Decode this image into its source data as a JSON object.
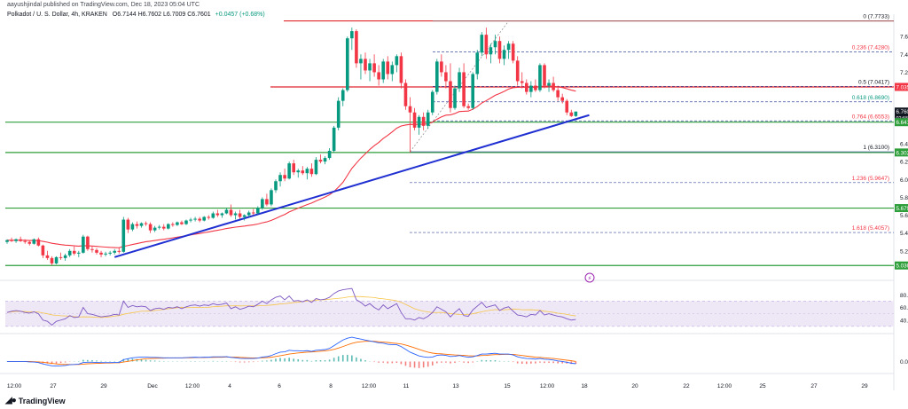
{
  "header": {
    "publish_line": "aayushjindal published on TradingView.com, Dec 18, 2023 05:04 UTC",
    "symbol": "Polkadot / U. S. Dollar, 4h, KRAKEN",
    "ohlc": "O6.7144 H6.7602 L6.7009 C6.7601",
    "change": "+0.0457 (+0.68%)"
  },
  "brand": {
    "label": "TradingView",
    "icon": "tradingview-logo-icon"
  },
  "colors": {
    "up": "#089981",
    "down": "#f23645",
    "ema": "#f23645",
    "trend": "#1f2fd1",
    "resistance": "#e0262e",
    "support": "#2e9e3a",
    "fib": "#3d4f9f",
    "rsi": "#7e57c2",
    "rsi_band": "#ede7f6",
    "macd": "#2962ff",
    "signal": "#ff6d00"
  },
  "chart_data": {
    "type": "candlestick",
    "timeframe": "4h",
    "x_ticks": [
      "12:00",
      "27",
      "29",
      "Dec",
      "12:00",
      "4",
      "6",
      "8",
      "12:00",
      "11",
      "13",
      "15",
      "12:00",
      "18",
      "20",
      "22",
      "12:00",
      "25",
      "27",
      "29"
    ],
    "price_axis": {
      "ticks": [
        "7.6000",
        "7.4000",
        "7.2000",
        "6.4000",
        "6.2000",
        "6.0000",
        "5.8000",
        "5.6000",
        "5.4000",
        "5.2000"
      ],
      "range": [
        4.9,
        7.85
      ]
    },
    "price_labels": [
      {
        "text": "7.0358",
        "value": 7.0358,
        "color": "#f23645"
      },
      {
        "text": "6.7601",
        "value": 6.7601,
        "color": "#131722",
        "sub": "02:55:09"
      },
      {
        "text": "6.6411",
        "value": 6.6411,
        "color": "#2e9e3a"
      },
      {
        "text": "6.3020",
        "value": 6.302,
        "color": "#2e9e3a"
      },
      {
        "text": "5.6793",
        "value": 5.6793,
        "color": "#2e9e3a"
      },
      {
        "text": "5.0369",
        "value": 5.0369,
        "color": "#2e9e3a"
      }
    ],
    "horizontal_lines": [
      {
        "value": 7.775,
        "kind": "resistance"
      },
      {
        "value": 7.0358,
        "kind": "resistance"
      },
      {
        "value": 6.6411,
        "kind": "support"
      },
      {
        "value": 6.302,
        "kind": "support"
      },
      {
        "value": 5.6793,
        "kind": "support"
      },
      {
        "value": 5.0369,
        "kind": "support"
      }
    ],
    "fib_levels": [
      {
        "label": "0 (7.7733)",
        "value": 7.7733
      },
      {
        "label": "0.236 (7.4280)",
        "value": 7.428
      },
      {
        "label": "0.5 (7.0417)",
        "value": 7.0417
      },
      {
        "label": "0.618 (6.8690)",
        "value": 6.869
      },
      {
        "label": "0.764 (6.6553)",
        "value": 6.6553
      },
      {
        "label": "1 (6.3100)",
        "value": 6.31
      },
      {
        "label": "1.236 (5.9647)",
        "value": 5.9647
      },
      {
        "label": "1.618 (5.4057)",
        "value": 5.4057
      }
    ],
    "trendline": {
      "from": {
        "bar": 24,
        "value": 5.13
      },
      "to": {
        "bar": 130,
        "value": 6.72
      }
    },
    "candles": [
      [
        5.3,
        5.33,
        5.28,
        5.32
      ],
      [
        5.32,
        5.35,
        5.3,
        5.31
      ],
      [
        5.31,
        5.34,
        5.29,
        5.33
      ],
      [
        5.33,
        5.36,
        5.3,
        5.31
      ],
      [
        5.31,
        5.33,
        5.28,
        5.3
      ],
      [
        5.3,
        5.32,
        5.26,
        5.28
      ],
      [
        5.28,
        5.34,
        5.27,
        5.33
      ],
      [
        5.33,
        5.35,
        5.25,
        5.26
      ],
      [
        5.26,
        5.27,
        5.12,
        5.15
      ],
      [
        5.15,
        5.2,
        5.1,
        5.12
      ],
      [
        5.12,
        5.14,
        5.04,
        5.06
      ],
      [
        5.06,
        5.14,
        5.05,
        5.13
      ],
      [
        5.13,
        5.18,
        5.1,
        5.12
      ],
      [
        5.12,
        5.17,
        5.09,
        5.15
      ],
      [
        5.15,
        5.22,
        5.13,
        5.2
      ],
      [
        5.2,
        5.25,
        5.15,
        5.17
      ],
      [
        5.17,
        5.2,
        5.13,
        5.18
      ],
      [
        5.18,
        5.38,
        5.17,
        5.36
      ],
      [
        5.36,
        5.37,
        5.2,
        5.22
      ],
      [
        5.22,
        5.25,
        5.18,
        5.21
      ],
      [
        5.21,
        5.23,
        5.16,
        5.18
      ],
      [
        5.18,
        5.2,
        5.13,
        5.16
      ],
      [
        5.16,
        5.19,
        5.14,
        5.17
      ],
      [
        5.17,
        5.2,
        5.15,
        5.18
      ],
      [
        5.18,
        5.22,
        5.16,
        5.2
      ],
      [
        5.2,
        5.24,
        5.17,
        5.19
      ],
      [
        5.19,
        5.58,
        5.18,
        5.55
      ],
      [
        5.55,
        5.57,
        5.4,
        5.44
      ],
      [
        5.44,
        5.52,
        5.42,
        5.5
      ],
      [
        5.5,
        5.53,
        5.45,
        5.48
      ],
      [
        5.48,
        5.52,
        5.46,
        5.51
      ],
      [
        5.51,
        5.53,
        5.48,
        5.5
      ],
      [
        5.5,
        5.52,
        5.4,
        5.43
      ],
      [
        5.43,
        5.48,
        5.41,
        5.46
      ],
      [
        5.46,
        5.49,
        5.44,
        5.47
      ],
      [
        5.47,
        5.5,
        5.43,
        5.45
      ],
      [
        5.45,
        5.51,
        5.44,
        5.5
      ],
      [
        5.5,
        5.52,
        5.47,
        5.49
      ],
      [
        5.49,
        5.53,
        5.48,
        5.52
      ],
      [
        5.52,
        5.54,
        5.49,
        5.5
      ],
      [
        5.5,
        5.55,
        5.49,
        5.54
      ],
      [
        5.54,
        5.57,
        5.52,
        5.55
      ],
      [
        5.55,
        5.58,
        5.53,
        5.56
      ],
      [
        5.56,
        5.58,
        5.52,
        5.54
      ],
      [
        5.54,
        5.59,
        5.53,
        5.58
      ],
      [
        5.58,
        5.6,
        5.55,
        5.57
      ],
      [
        5.57,
        5.64,
        5.56,
        5.62
      ],
      [
        5.62,
        5.66,
        5.58,
        5.6
      ],
      [
        5.6,
        5.63,
        5.57,
        5.62
      ],
      [
        5.62,
        5.68,
        5.61,
        5.66
      ],
      [
        5.66,
        5.72,
        5.58,
        5.6
      ],
      [
        5.6,
        5.64,
        5.55,
        5.62
      ],
      [
        5.62,
        5.66,
        5.56,
        5.58
      ],
      [
        5.58,
        5.61,
        5.54,
        5.6
      ],
      [
        5.6,
        5.65,
        5.58,
        5.63
      ],
      [
        5.63,
        5.67,
        5.6,
        5.62
      ],
      [
        5.62,
        5.7,
        5.61,
        5.68
      ],
      [
        5.68,
        5.8,
        5.66,
        5.78
      ],
      [
        5.78,
        5.84,
        5.7,
        5.72
      ],
      [
        5.72,
        5.9,
        5.7,
        5.88
      ],
      [
        5.88,
        6.0,
        5.85,
        5.98
      ],
      [
        5.98,
        6.08,
        5.92,
        6.05
      ],
      [
        6.05,
        6.12,
        5.98,
        6.01
      ],
      [
        6.01,
        6.2,
        6.0,
        6.18
      ],
      [
        6.18,
        6.22,
        6.05,
        6.08
      ],
      [
        6.08,
        6.12,
        6.02,
        6.1
      ],
      [
        6.1,
        6.15,
        6.05,
        6.07
      ],
      [
        6.07,
        6.14,
        6.0,
        6.12
      ],
      [
        6.12,
        6.18,
        6.03,
        6.06
      ],
      [
        6.06,
        6.25,
        6.05,
        6.22
      ],
      [
        6.22,
        6.28,
        6.18,
        6.2
      ],
      [
        6.2,
        6.26,
        6.17,
        6.24
      ],
      [
        6.24,
        6.35,
        6.22,
        6.32
      ],
      [
        6.32,
        6.6,
        6.3,
        6.58
      ],
      [
        6.58,
        6.92,
        6.55,
        6.88
      ],
      [
        6.88,
        7.02,
        6.82,
        7.0
      ],
      [
        7.0,
        7.6,
        6.98,
        7.58
      ],
      [
        7.58,
        7.7,
        7.45,
        7.66
      ],
      [
        7.66,
        7.68,
        7.25,
        7.3
      ],
      [
        7.3,
        7.4,
        7.12,
        7.35
      ],
      [
        7.35,
        7.42,
        7.18,
        7.22
      ],
      [
        7.22,
        7.35,
        7.1,
        7.3
      ],
      [
        7.3,
        7.4,
        7.15,
        7.2
      ],
      [
        7.2,
        7.28,
        7.05,
        7.12
      ],
      [
        7.12,
        7.35,
        7.08,
        7.32
      ],
      [
        7.32,
        7.38,
        7.12,
        7.18
      ],
      [
        7.18,
        7.32,
        7.1,
        7.28
      ],
      [
        7.28,
        7.4,
        7.2,
        7.38
      ],
      [
        7.38,
        7.42,
        7.02,
        7.08
      ],
      [
        7.08,
        7.12,
        6.78,
        6.82
      ],
      [
        6.82,
        6.92,
        6.3,
        6.75
      ],
      [
        6.75,
        6.8,
        6.55,
        6.58
      ],
      [
        6.58,
        6.72,
        6.5,
        6.7
      ],
      [
        6.7,
        6.75,
        6.55,
        6.6
      ],
      [
        6.6,
        6.78,
        6.57,
        6.75
      ],
      [
        6.75,
        7.0,
        6.72,
        6.98
      ],
      [
        6.98,
        7.35,
        6.95,
        7.32
      ],
      [
        7.32,
        7.4,
        7.15,
        7.2
      ],
      [
        7.2,
        7.28,
        7.02,
        7.1
      ],
      [
        7.1,
        7.3,
        6.75,
        6.8
      ],
      [
        6.8,
        7.05,
        6.78,
        7.02
      ],
      [
        7.02,
        7.25,
        6.98,
        7.2
      ],
      [
        7.2,
        7.3,
        6.8,
        6.82
      ],
      [
        6.82,
        6.85,
        6.78,
        6.8
      ],
      [
        6.8,
        7.2,
        6.78,
        7.18
      ],
      [
        7.18,
        7.45,
        7.12,
        7.42
      ],
      [
        7.42,
        7.65,
        7.38,
        7.62
      ],
      [
        7.62,
        7.7,
        7.35,
        7.4
      ],
      [
        7.4,
        7.52,
        7.3,
        7.48
      ],
      [
        7.48,
        7.62,
        7.4,
        7.55
      ],
      [
        7.55,
        7.6,
        7.3,
        7.35
      ],
      [
        7.35,
        7.5,
        7.28,
        7.45
      ],
      [
        7.45,
        7.55,
        7.35,
        7.52
      ],
      [
        7.52,
        7.55,
        7.3,
        7.33
      ],
      [
        7.33,
        7.38,
        7.05,
        7.1
      ],
      [
        7.1,
        7.2,
        7.02,
        7.08
      ],
      [
        7.08,
        7.12,
        6.95,
        6.98
      ],
      [
        6.98,
        7.1,
        6.92,
        7.05
      ],
      [
        7.05,
        7.12,
        6.98,
        7.0
      ],
      [
        7.0,
        7.3,
        6.98,
        7.28
      ],
      [
        7.28,
        7.3,
        7.02,
        7.05
      ],
      [
        7.05,
        7.12,
        6.98,
        7.08
      ],
      [
        7.08,
        7.15,
        6.98,
        7.0
      ],
      [
        7.0,
        7.05,
        6.88,
        6.92
      ],
      [
        6.92,
        6.96,
        6.85,
        6.88
      ],
      [
        6.88,
        6.9,
        6.72,
        6.75
      ],
      [
        6.75,
        6.78,
        6.7,
        6.71
      ],
      [
        6.71,
        6.76,
        6.7,
        6.76
      ]
    ],
    "rsi": {
      "ticks": [
        "80.00",
        "60.00",
        "40.00"
      ],
      "range": [
        20,
        100
      ],
      "band": [
        30,
        70
      ],
      "values": [
        52,
        54,
        55,
        54,
        52,
        51,
        53,
        50,
        40,
        38,
        32,
        38,
        40,
        42,
        47,
        44,
        45,
        60,
        50,
        49,
        47,
        45,
        46,
        47,
        49,
        48,
        70,
        60,
        63,
        61,
        62,
        61,
        55,
        58,
        59,
        57,
        60,
        59,
        61,
        58,
        61,
        63,
        64,
        62,
        64,
        63,
        66,
        64,
        65,
        67,
        58,
        61,
        57,
        59,
        62,
        61,
        65,
        70,
        66,
        72,
        76,
        78,
        72,
        78,
        70,
        71,
        69,
        72,
        68,
        74,
        72,
        73,
        76,
        82,
        86,
        88,
        89,
        90,
        72,
        68,
        62,
        66,
        60,
        56,
        64,
        58,
        62,
        66,
        52,
        42,
        42,
        40,
        44,
        42,
        46,
        52,
        61,
        57,
        53,
        45,
        52,
        58,
        47,
        46,
        56,
        62,
        68,
        60,
        62,
        64,
        55,
        59,
        61,
        54,
        48,
        47,
        45,
        49,
        48,
        55,
        48,
        50,
        48,
        46,
        45,
        42,
        40,
        41
      ]
    },
    "macd": {
      "ticks": [
        "0.0000"
      ],
      "range": [
        -0.05,
        0.14
      ],
      "macd": [
        0.0,
        0.0,
        0.0,
        0.0,
        0.0,
        -0.002,
        -0.003,
        -0.006,
        -0.013,
        -0.018,
        -0.023,
        -0.024,
        -0.023,
        -0.021,
        -0.017,
        -0.016,
        -0.014,
        -0.005,
        -0.004,
        -0.004,
        -0.005,
        -0.006,
        -0.006,
        -0.006,
        -0.005,
        -0.005,
        0.01,
        0.015,
        0.02,
        0.022,
        0.024,
        0.024,
        0.022,
        0.022,
        0.021,
        0.02,
        0.02,
        0.02,
        0.02,
        0.02,
        0.021,
        0.022,
        0.023,
        0.022,
        0.023,
        0.023,
        0.025,
        0.025,
        0.025,
        0.026,
        0.022,
        0.02,
        0.017,
        0.016,
        0.016,
        0.016,
        0.018,
        0.024,
        0.026,
        0.032,
        0.042,
        0.05,
        0.052,
        0.06,
        0.058,
        0.058,
        0.056,
        0.058,
        0.054,
        0.06,
        0.062,
        0.064,
        0.07,
        0.085,
        0.1,
        0.115,
        0.125,
        0.13,
        0.125,
        0.12,
        0.115,
        0.11,
        0.105,
        0.1,
        0.098,
        0.092,
        0.09,
        0.09,
        0.08,
        0.065,
        0.05,
        0.04,
        0.03,
        0.025,
        0.022,
        0.024,
        0.033,
        0.035,
        0.033,
        0.027,
        0.028,
        0.032,
        0.027,
        0.023,
        0.025,
        0.032,
        0.04,
        0.04,
        0.042,
        0.044,
        0.04,
        0.04,
        0.04,
        0.035,
        0.025,
        0.02,
        0.016,
        0.015,
        0.013,
        0.016,
        0.012,
        0.011,
        0.008,
        0.003,
        0.0,
        -0.004,
        -0.009,
        -0.012
      ],
      "signal": [
        0.0,
        0.0,
        0.0,
        0.0,
        0.0,
        0.0,
        -0.001,
        -0.002,
        -0.004,
        -0.007,
        -0.01,
        -0.013,
        -0.015,
        -0.016,
        -0.016,
        -0.016,
        -0.016,
        -0.014,
        -0.012,
        -0.011,
        -0.01,
        -0.009,
        -0.008,
        -0.008,
        -0.007,
        -0.007,
        -0.003,
        0.001,
        0.005,
        0.009,
        0.012,
        0.015,
        0.016,
        0.017,
        0.018,
        0.018,
        0.019,
        0.019,
        0.019,
        0.019,
        0.02,
        0.02,
        0.021,
        0.021,
        0.021,
        0.022,
        0.022,
        0.023,
        0.023,
        0.024,
        0.023,
        0.023,
        0.022,
        0.021,
        0.02,
        0.019,
        0.019,
        0.02,
        0.021,
        0.023,
        0.027,
        0.031,
        0.035,
        0.04,
        0.043,
        0.046,
        0.048,
        0.05,
        0.051,
        0.053,
        0.055,
        0.057,
        0.06,
        0.065,
        0.072,
        0.08,
        0.089,
        0.097,
        0.103,
        0.106,
        0.108,
        0.109,
        0.108,
        0.106,
        0.104,
        0.102,
        0.099,
        0.097,
        0.094,
        0.088,
        0.081,
        0.073,
        0.065,
        0.057,
        0.05,
        0.045,
        0.042,
        0.041,
        0.039,
        0.037,
        0.035,
        0.034,
        0.033,
        0.031,
        0.03,
        0.03,
        0.032,
        0.033,
        0.035,
        0.037,
        0.037,
        0.038,
        0.038,
        0.038,
        0.035,
        0.032,
        0.029,
        0.026,
        0.023,
        0.022,
        0.02,
        0.018,
        0.016,
        0.013,
        0.01,
        0.007,
        0.004,
        0.0
      ]
    }
  }
}
